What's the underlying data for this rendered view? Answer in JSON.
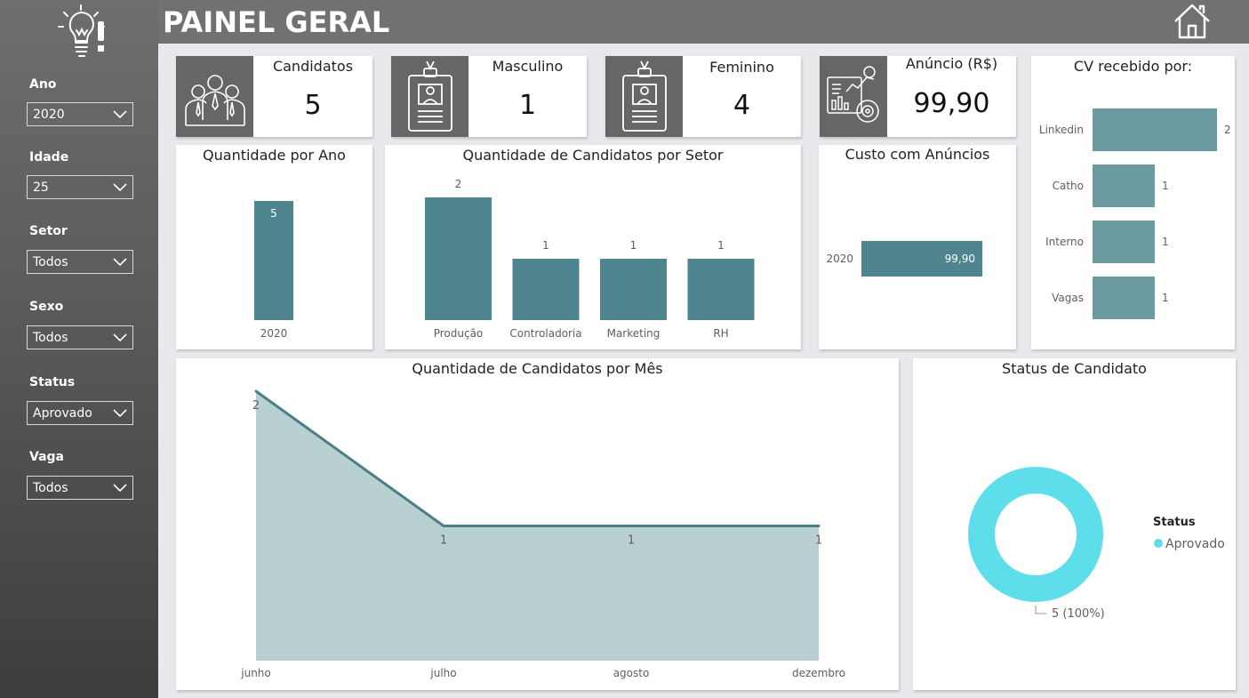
{
  "header": {
    "title": "PAINEL GERAL",
    "home_icon": "home-icon"
  },
  "logo_icon": "lightbulb-idea-icon",
  "filters": [
    {
      "label": "Ano",
      "value": "2020"
    },
    {
      "label": "Idade",
      "value": "25"
    },
    {
      "label": "Setor",
      "value": "Todos"
    },
    {
      "label": "Sexo",
      "value": "Todos"
    },
    {
      "label": "Status",
      "value": "Aprovado"
    },
    {
      "label": "Vaga",
      "value": "Todos"
    }
  ],
  "kpis": {
    "candidatos": {
      "title": "Candidatos",
      "value": "5",
      "icon": "group-people-icon"
    },
    "masculino": {
      "title": "Masculino",
      "value": "1",
      "icon": "id-badge-icon"
    },
    "feminino": {
      "title": "Feminino",
      "value": "4",
      "icon": "id-badge-icon"
    },
    "anuncio": {
      "title": "Anúncio (R$)",
      "value": "99,90",
      "icon": "analytics-chart-icon"
    }
  },
  "colors": {
    "bar": "#4f858f",
    "bar_light": "#6b9aa1",
    "area_fill": "#b9d0d3",
    "area_line": "#4b7f88",
    "donut": "#5ddeea",
    "sidebar_top": "#6e6e6e",
    "header": "#717171"
  },
  "chart_data": [
    {
      "id": "cv",
      "type": "bar",
      "orientation": "horizontal",
      "title": "CV recebido por:",
      "categories": [
        "Linkedin",
        "Catho",
        "Interno",
        "Vagas"
      ],
      "values": [
        2,
        1,
        1,
        1
      ],
      "data_labels": [
        "2",
        "1",
        "1",
        "1"
      ]
    },
    {
      "id": "ano",
      "type": "bar",
      "title": "Quantidade por Ano",
      "categories": [
        "2020"
      ],
      "values": [
        5
      ],
      "data_labels": [
        "5"
      ]
    },
    {
      "id": "setor",
      "type": "bar",
      "title": "Quantidade de Candidatos por Setor",
      "categories": [
        "Produção",
        "Controladoria",
        "Marketing",
        "RH"
      ],
      "values": [
        2,
        1,
        1,
        1
      ],
      "data_labels": [
        "2",
        "1",
        "1",
        "1"
      ]
    },
    {
      "id": "custo",
      "type": "bar",
      "orientation": "horizontal",
      "title": "Custo com Anúncios",
      "categories": [
        "2020"
      ],
      "values": [
        99.9
      ],
      "data_labels": [
        "99,90"
      ]
    },
    {
      "id": "mes",
      "type": "area",
      "title": "Quantidade de Candidatos por Mês",
      "categories": [
        "junho",
        "julho",
        "agosto",
        "dezembro"
      ],
      "values": [
        2,
        1,
        1,
        1
      ],
      "data_labels": [
        "2",
        "1",
        "1",
        "1"
      ]
    },
    {
      "id": "status",
      "type": "pie",
      "title": "Status de Candidato",
      "legend_title": "Status",
      "legend_position": "right",
      "categories": [
        "Aprovado"
      ],
      "values": [
        5
      ],
      "data_labels": [
        "5 (100%)"
      ]
    }
  ]
}
